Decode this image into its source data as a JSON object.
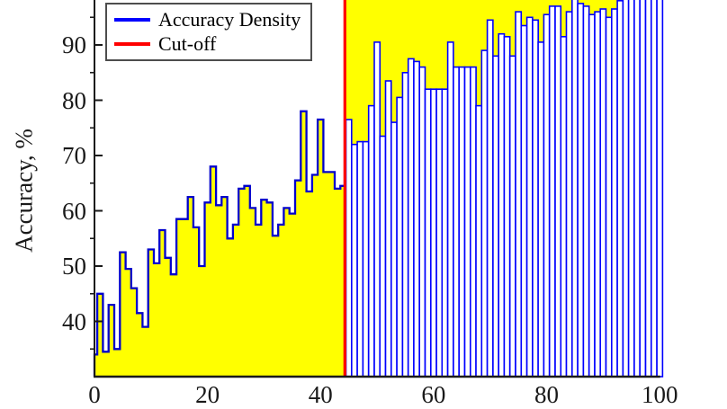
{
  "chart_data": {
    "type": "area-stairs+bar",
    "title": "",
    "ylabel": "Accuracy, %",
    "xlabel": "",
    "xlim": [
      0,
      100
    ],
    "ylim_visible": [
      30,
      98.3
    ],
    "xticks": [
      0,
      20,
      40,
      60,
      80,
      100
    ],
    "yticks": [
      40,
      50,
      60,
      70,
      80,
      90
    ],
    "grid": false,
    "legend_position": "northwest",
    "legend": [
      {
        "label": "Accuracy Density",
        "color": "#0000ff"
      },
      {
        "label": "Cut-off",
        "color": "#ff0000"
      }
    ],
    "cutoff_x": 44.3,
    "x_step": 1,
    "x": [
      0,
      1,
      2,
      3,
      4,
      5,
      6,
      7,
      8,
      9,
      10,
      11,
      12,
      13,
      14,
      15,
      16,
      17,
      18,
      19,
      20,
      21,
      22,
      23,
      24,
      25,
      26,
      27,
      28,
      29,
      30,
      31,
      32,
      33,
      34,
      35,
      36,
      37,
      38,
      39,
      40,
      41,
      42,
      43,
      44,
      45,
      46,
      47,
      48,
      49,
      50,
      51,
      52,
      53,
      54,
      55,
      56,
      57,
      58,
      59,
      60,
      61,
      62,
      63,
      64,
      65,
      66,
      67,
      68,
      69,
      70,
      71,
      72,
      73,
      74,
      75,
      76,
      77,
      78,
      79,
      80,
      81,
      82,
      83,
      84,
      85,
      86,
      87,
      88,
      89,
      90,
      91,
      92,
      93,
      94,
      95,
      96,
      97,
      98,
      99,
      100
    ],
    "values": [
      34,
      45,
      34.5,
      43,
      35,
      52.5,
      49.5,
      46,
      41.5,
      39,
      53,
      50.5,
      56.5,
      51.5,
      48.5,
      58.5,
      58.5,
      62.5,
      57,
      50,
      61.5,
      68,
      61,
      62.5,
      55,
      57.5,
      64,
      64.5,
      60.5,
      57.5,
      62,
      61.5,
      55.5,
      57.5,
      60.5,
      59.5,
      65.5,
      78,
      63.5,
      66.5,
      76.5,
      67,
      67,
      64,
      64.5,
      76.5,
      72,
      72.5,
      72.5,
      79,
      90.5,
      73.5,
      83.5,
      76,
      80.5,
      85,
      87.5,
      87,
      86,
      82,
      82,
      82,
      82,
      90.5,
      86,
      86,
      86,
      86,
      79,
      89,
      94.5,
      88,
      92,
      91.5,
      88,
      96,
      93.5,
      95,
      94.5,
      90.5,
      95.5,
      97,
      97,
      91.5,
      96,
      98.5,
      97.5,
      97,
      95.5,
      96,
      96.5,
      95,
      96.5,
      98,
      98.5,
      98.5,
      99,
      99,
      99.5,
      99.5,
      100
    ],
    "series_notes": {
      "left_of_cutoff_style": "yellow filled stair with blue outline",
      "right_of_cutoff_style": "white bars with blue edges on yellow band"
    },
    "colors": {
      "area_fill": "#ffff00",
      "density_line": "#0000cc",
      "bar_edge": "#0000ff",
      "bar_face": "#ffffff",
      "cutoff_line": "#ff0000",
      "axis": "#1a1a1a",
      "legend_border": "#4d4d4d",
      "background": "#ffffff"
    }
  }
}
